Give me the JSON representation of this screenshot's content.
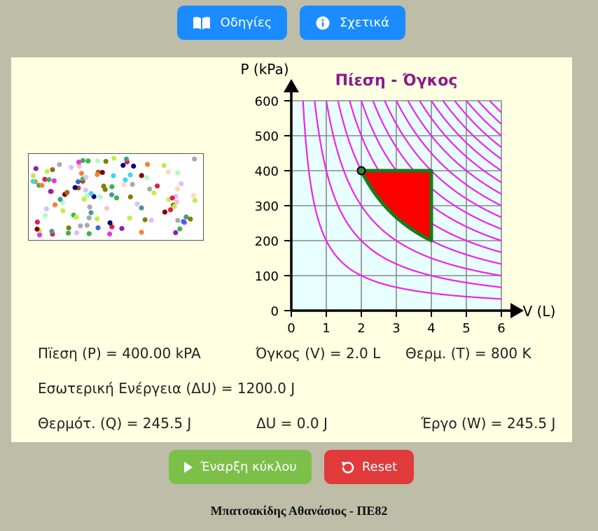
{
  "header_buttons": {
    "instructions_label": "Οδηγίες",
    "about_label": "Σχετικά"
  },
  "chart_data": {
    "type": "line",
    "title": "Πίεση - Όγκος",
    "xlabel": "V (L)",
    "ylabel": "P (kPa)",
    "xlim": [
      0,
      6
    ],
    "ylim": [
      0,
      600
    ],
    "x_ticks": [
      "0",
      "1",
      "2",
      "3",
      "4",
      "5",
      "6"
    ],
    "y_ticks": [
      "0",
      "100",
      "200",
      "300",
      "400",
      "500",
      "600"
    ],
    "grid": true,
    "isotherm_products_PV": [
      200,
      400,
      600,
      800,
      1000,
      1200,
      1400,
      1600,
      1800,
      2000,
      2200,
      2400,
      2600,
      2800,
      3000,
      3200,
      3400,
      3600
    ],
    "cycle": {
      "vertices": [
        {
          "V": 2,
          "P": 400
        },
        {
          "V": 4,
          "P": 400
        },
        {
          "V": 4,
          "P": 200
        }
      ],
      "closing_curve": "isotherm PV=800 from V=4 to V=2",
      "fill_color": "#ff0000",
      "edge_color": "#1a7a1a"
    },
    "current_state": {
      "V": 2.0,
      "P": 400
    },
    "isotherm_color": "#ee22ee",
    "plot_bg": "#e8ffff"
  },
  "readouts": {
    "pressure": "Πïεση (P) = 400.00 kPA",
    "volume": "Όγκος (V) = 2.0 L",
    "temperature": "Θερμ. (T) = 800 K",
    "internal_energy": "Εσωτερική Ενέργεια (ΔU) = 1200.0 J",
    "heat": "Θερμότ. (Q) = 245.5 J",
    "delta_u": "ΔU = 0.0 J",
    "work": "Έργο (W) = 245.5 J"
  },
  "controls": {
    "start_label": "Έναρξη κύκλου",
    "reset_label": "Reset"
  },
  "footer": "Μπατσακίδης Αθανάσιος - ΠΕ82",
  "gas": {
    "particle_colors": [
      "#e6194b",
      "#3cb44b",
      "#4363d8",
      "#f58231",
      "#911eb4",
      "#42d4f4",
      "#f032e6",
      "#bfef45",
      "#9a6324",
      "#800000",
      "#469990",
      "#000075",
      "#a9a9a9",
      "#fabed4",
      "#ffd8b1",
      "#aaffc3",
      "#dcbeff",
      "#808000"
    ]
  }
}
